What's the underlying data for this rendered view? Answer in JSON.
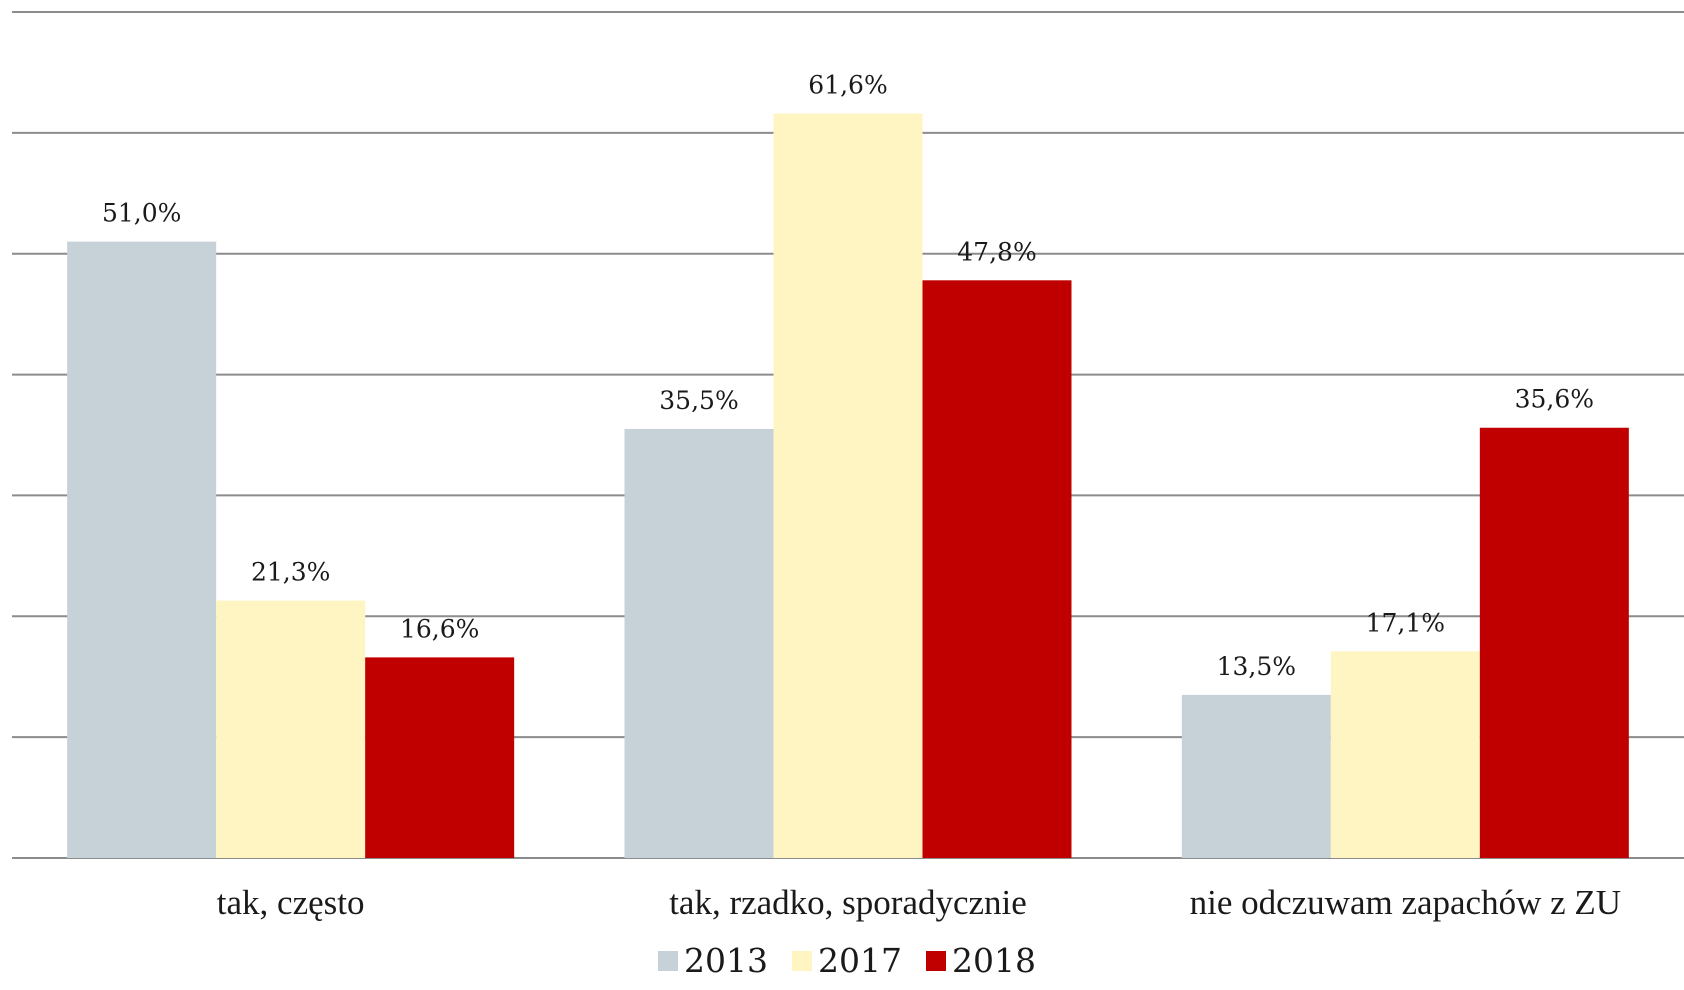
{
  "chart_data": {
    "type": "bar",
    "categories": [
      "tak, często",
      "tak, rzadko, sporadycznie",
      "nie odczuwam zapachów z ZU"
    ],
    "series": [
      {
        "name": "2013",
        "color": "#c7d1d8",
        "values": [
          51.0,
          35.5,
          13.5
        ],
        "labels": [
          "51,0%",
          "35,5%",
          "13,5%"
        ]
      },
      {
        "name": "2017",
        "color": "#fff5c2",
        "values": [
          21.3,
          61.6,
          17.1
        ],
        "labels": [
          "21,3%",
          "61,6%",
          "17,1%"
        ]
      },
      {
        "name": "2018",
        "color": "#c00000",
        "values": [
          16.6,
          47.8,
          35.6
        ],
        "labels": [
          "16,6%",
          "47,8%",
          "35,6%"
        ]
      }
    ],
    "ylim": [
      0,
      70
    ],
    "grid": true,
    "legend": "bottom"
  }
}
